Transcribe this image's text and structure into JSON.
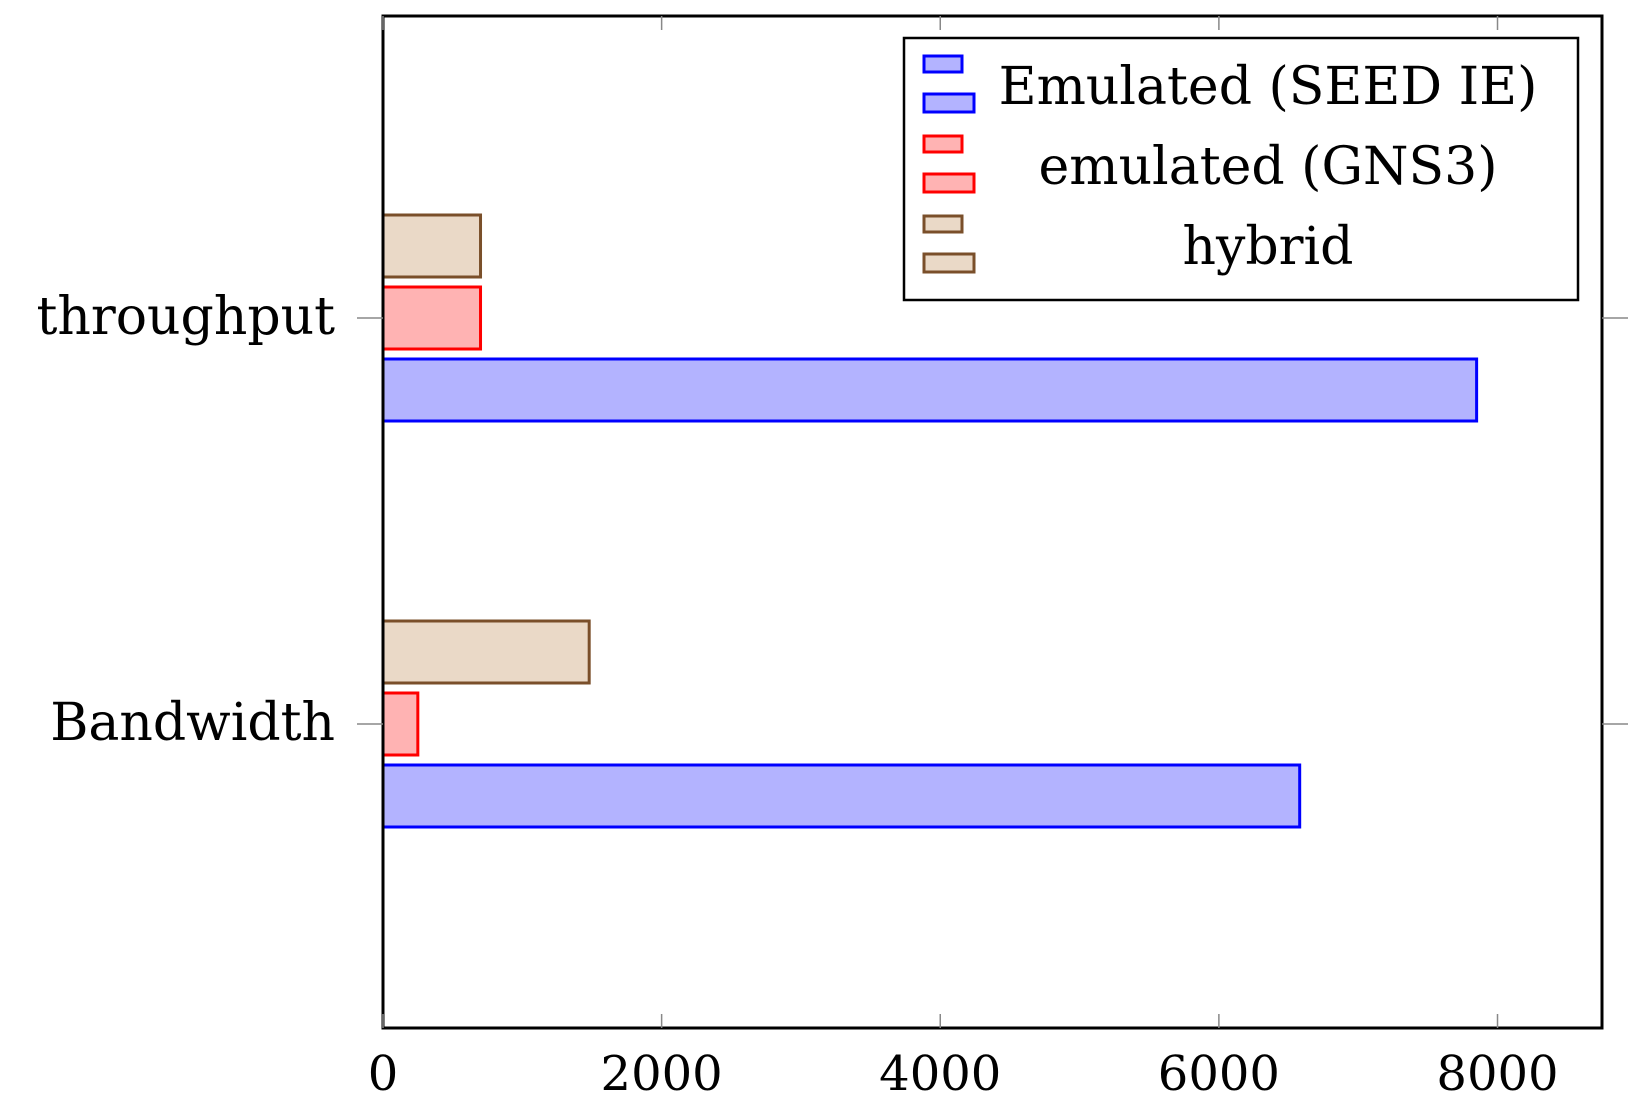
{
  "chart_data": {
    "type": "bar",
    "orientation": "horizontal",
    "title": "",
    "xlabel": "",
    "ylabel": "",
    "categories": [
      "throughput",
      "Bandwidth"
    ],
    "series": [
      {
        "name": "Emulated (SEED IE)",
        "values": [
          7850,
          6580
        ],
        "stroke": "#0000ff",
        "fill": "#b3b3ff"
      },
      {
        "name": "emulated (GNS3)",
        "values": [
          700,
          250
        ],
        "stroke": "#ff0000",
        "fill": "#ffb3b3"
      },
      {
        "name": "hybrid",
        "values": [
          700,
          1480
        ],
        "stroke": "#7a4f2a",
        "fill": "#ead9c7"
      }
    ],
    "xlim": [
      0,
      8750
    ],
    "xticks": [
      0,
      2000,
      4000,
      6000,
      8000
    ],
    "xtick_labels": [
      "0",
      "2000",
      "4000",
      "6000",
      "8000"
    ],
    "grid": false,
    "legend_position": "top-right"
  }
}
